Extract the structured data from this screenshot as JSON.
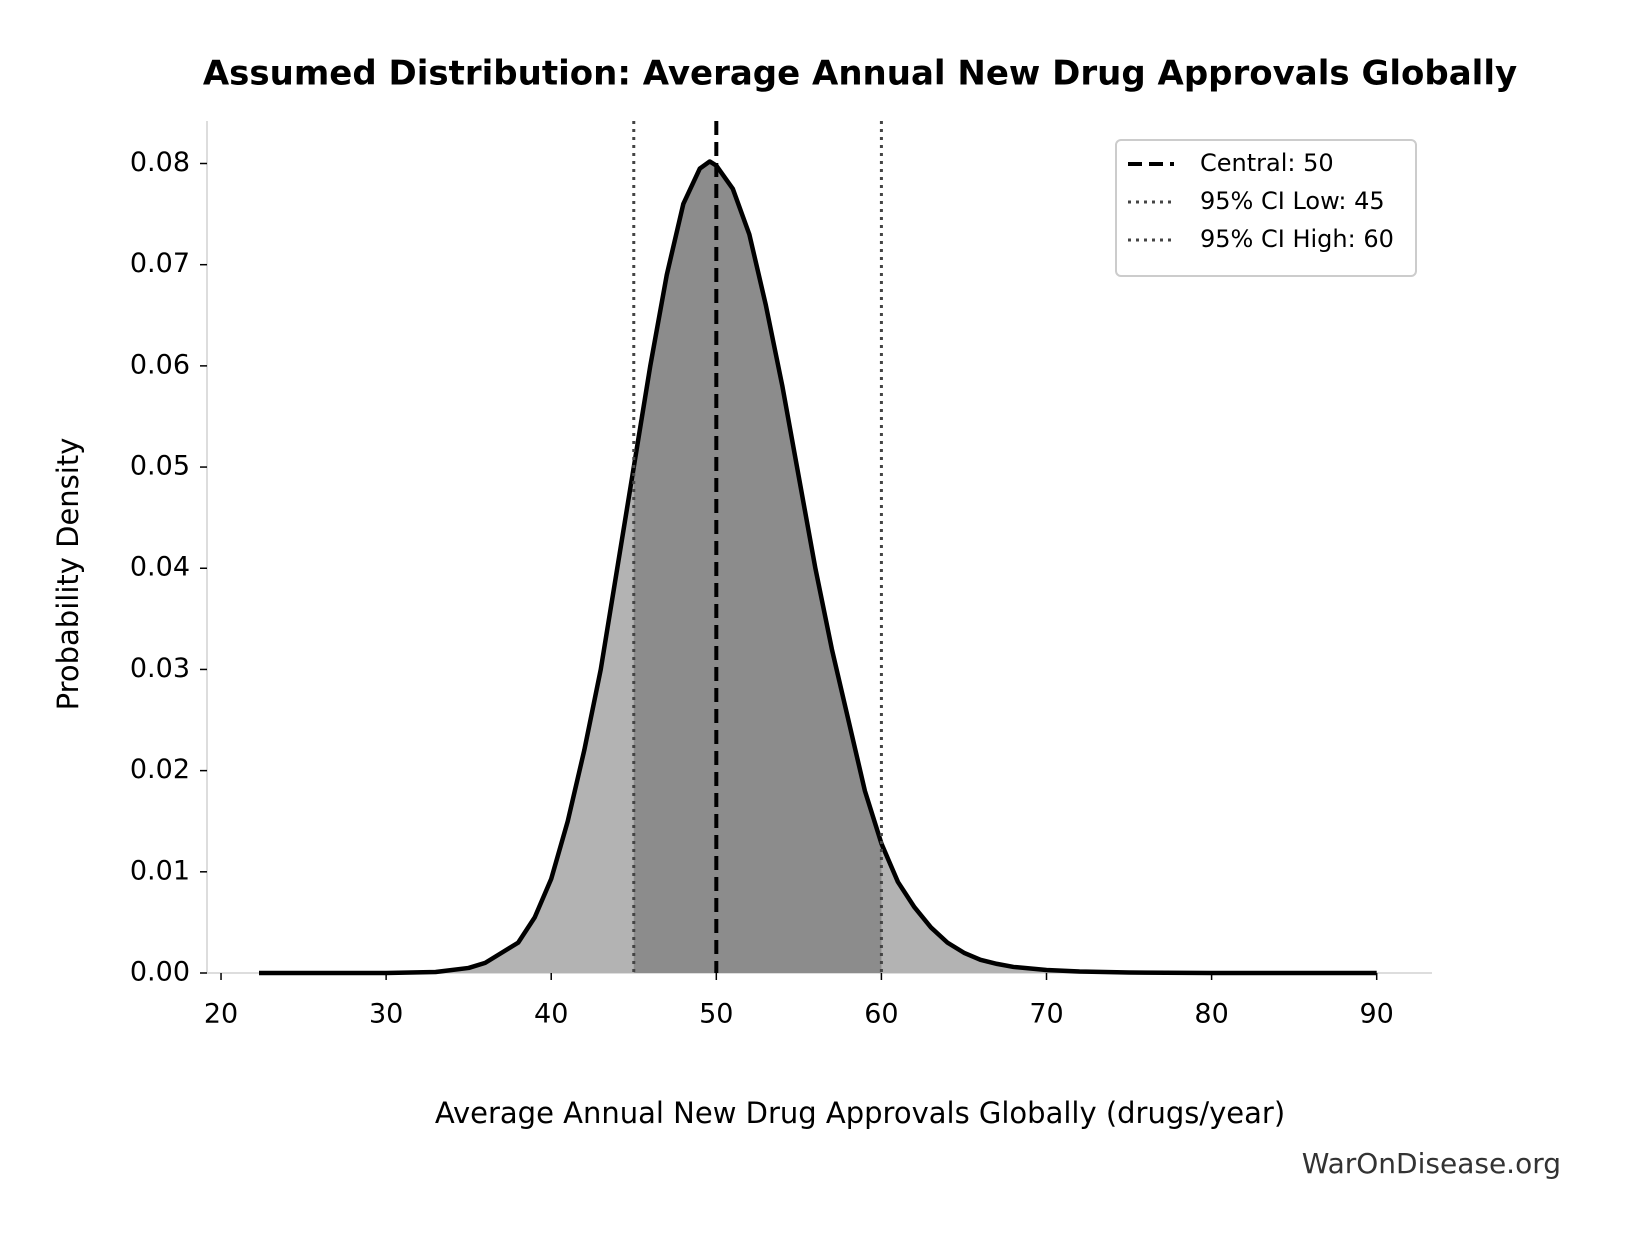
{
  "chart_data": {
    "type": "area",
    "title": "Assumed Distribution: Average Annual New Drug Approvals Globally",
    "x_label": "Average Annual New Drug Approvals Globally (drugs/year)",
    "y_label": "Probability Density",
    "watermark": "WarOnDisease.org",
    "x": [
      22.3,
      25,
      30,
      33,
      35,
      36,
      37,
      38,
      39,
      40,
      41,
      42,
      43,
      44,
      45,
      46,
      47,
      48,
      49,
      49.6,
      50,
      51,
      52,
      53,
      54,
      55,
      56,
      57,
      58,
      59,
      60,
      61,
      62,
      63,
      64,
      65,
      66,
      67,
      68,
      70,
      72,
      75,
      80,
      85,
      90
    ],
    "values": [
      0,
      0,
      0,
      0.0001,
      0.0005,
      0.001,
      0.002,
      0.003,
      0.0055,
      0.0093,
      0.015,
      0.022,
      0.03,
      0.04,
      0.05,
      0.06,
      0.069,
      0.076,
      0.0795,
      0.0802,
      0.0798,
      0.0775,
      0.073,
      0.066,
      0.058,
      0.049,
      0.04,
      0.032,
      0.025,
      0.018,
      0.0128,
      0.009,
      0.0065,
      0.0045,
      0.003,
      0.002,
      0.0013,
      0.0009,
      0.0006,
      0.0003,
      0.00015,
      5e-05,
      0,
      0,
      0
    ],
    "line_color": "#000000",
    "fill_color": "#b3b3b3",
    "ci_fill_color": "#8c8c8c",
    "reference_lines": [
      {
        "value": 50,
        "label": "Central: 50",
        "style": "dashed",
        "color": "#000000"
      },
      {
        "value": 45,
        "label": "95% CI Low: 45",
        "style": "dotted",
        "color": "#444444"
      },
      {
        "value": 60,
        "label": "95% CI High: 60",
        "style": "dotted",
        "color": "#444444"
      }
    ],
    "legend": "upper right",
    "xlim": [
      19.15,
      93.35
    ],
    "ylim": [
      0,
      0.0842
    ],
    "xticks": [
      20,
      30,
      40,
      50,
      60,
      70,
      80,
      90
    ],
    "yticks": [
      {
        "value": 0,
        "label": "0.00"
      },
      {
        "value": 0.01,
        "label": "0.01"
      },
      {
        "value": 0.02,
        "label": "0.02"
      },
      {
        "value": 0.03,
        "label": "0.03"
      },
      {
        "value": 0.04,
        "label": "0.04"
      },
      {
        "value": 0.05,
        "label": "0.05"
      },
      {
        "value": 0.06,
        "label": "0.06"
      },
      {
        "value": 0.07,
        "label": "0.07"
      },
      {
        "value": 0.08,
        "label": "0.08"
      }
    ]
  }
}
